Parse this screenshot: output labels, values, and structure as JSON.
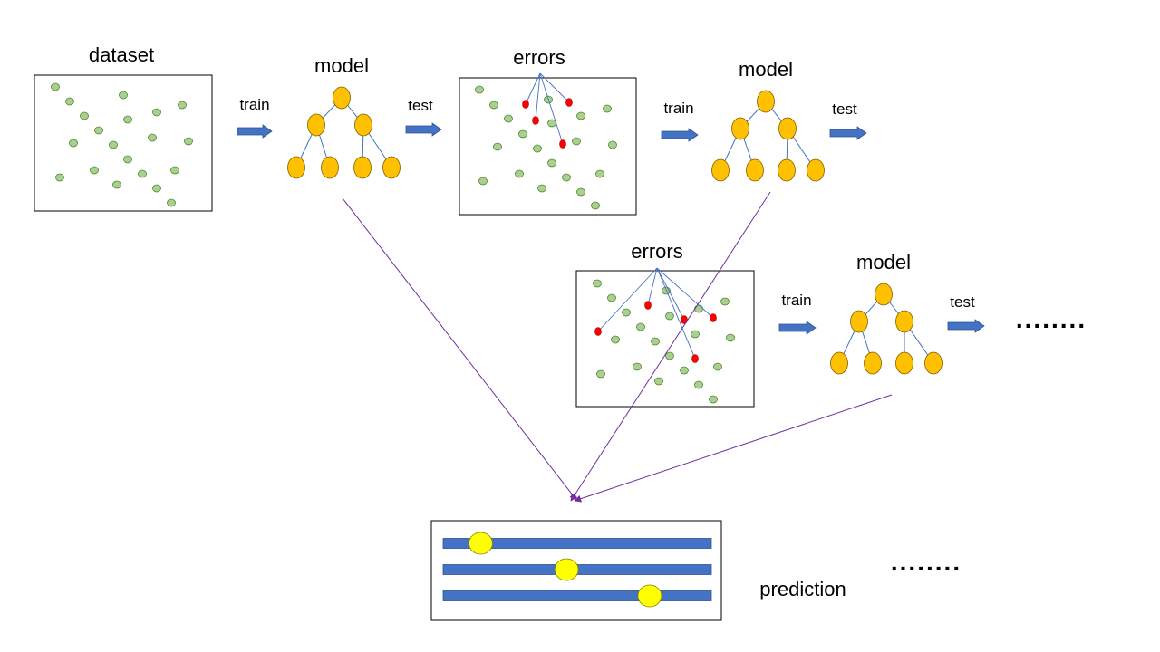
{
  "labels": {
    "dataset": "dataset",
    "model1": "model",
    "model2": "model",
    "model3": "model",
    "errors1": "errors",
    "errors2": "errors",
    "train1": "train",
    "test1": "test",
    "train2": "train",
    "test2": "test",
    "train3": "train",
    "test3": "test",
    "prediction": "prediction",
    "ellipsis_right": "........",
    "ellipsis_bottom": "........"
  },
  "colors": {
    "data_point": "#a9d18e",
    "data_point_stroke": "#548235",
    "error_point": "#ff0000",
    "tree_node": "#ffc000",
    "tree_node_stroke": "#7f6000",
    "tree_edge": "#4472c4",
    "arrow": "#4472c4",
    "ensemble_line": "#7030a0",
    "prediction_bar": "#4472c4",
    "prediction_marker": "#ffff00"
  },
  "icons": {
    "data_point": "green-circle",
    "error_point": "red-circle",
    "tree_node": "orange-ellipse",
    "arrow": "block-arrow-right",
    "prediction_marker": "yellow-circle"
  },
  "prediction_marker_levels": [
    0.14,
    0.46,
    0.77
  ]
}
